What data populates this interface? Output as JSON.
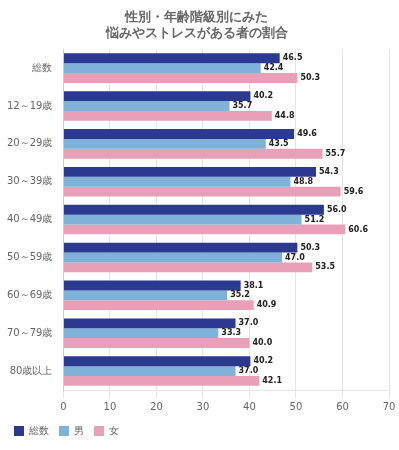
{
  "chart_data": {
    "type": "bar",
    "orientation": "horizontal",
    "title": "性別・年齢階級別にみた\n悩みやストレスがある者の割合",
    "categories": [
      "総数",
      "12～19歳",
      "20～29歳",
      "30～39歳",
      "40～49歳",
      "50～59歳",
      "60～69歳",
      "70～79歳",
      "80歳以上"
    ],
    "series": [
      {
        "name": "総数",
        "color": "#2b3990",
        "values": [
          46.5,
          40.2,
          49.6,
          54.3,
          56.0,
          50.3,
          38.1,
          37.0,
          40.2
        ],
        "value_labels": [
          "46.5",
          "40.2",
          "49.6",
          "54.3",
          "56.0",
          "50.3",
          "38.1",
          "37.0",
          "40.2"
        ]
      },
      {
        "name": "男",
        "color": "#7fb2d8",
        "values": [
          42.4,
          35.7,
          43.5,
          48.8,
          51.2,
          47.0,
          35.2,
          33.3,
          37.0
        ],
        "value_labels": [
          "42.4",
          "35.7",
          "43.5",
          "48.8",
          "51.2",
          "47.0",
          "35.2",
          "33.3",
          "37.0"
        ]
      },
      {
        "name": "女",
        "color": "#e8a0b8",
        "values": [
          50.3,
          44.8,
          55.7,
          59.6,
          60.6,
          53.5,
          40.9,
          40.0,
          42.1
        ],
        "value_labels": [
          "50.3",
          "44.8",
          "55.7",
          "59.6",
          "60.6",
          "53.5",
          "40.9",
          "40.0",
          "42.1"
        ]
      }
    ],
    "xlim": [
      0,
      70
    ],
    "xticks": [
      0,
      10,
      20,
      30,
      40,
      50,
      60,
      70
    ],
    "grid": true,
    "legend": "lower left",
    "data_labels": true
  }
}
